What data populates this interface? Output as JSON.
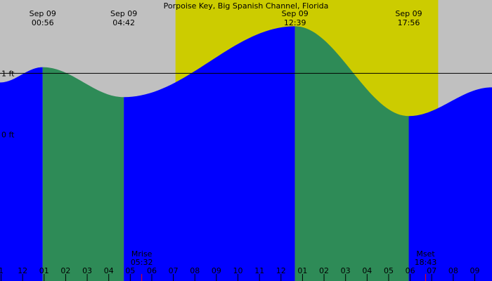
{
  "chart_data": {
    "type": "area",
    "title": "Porpoise Key, Big Spanish Channel, Florida",
    "xlabel": "",
    "ylabel": "",
    "x_unit": "hour",
    "xlim": [
      -1.05,
      21.8
    ],
    "ylim": [
      -2.4,
      2.2
    ],
    "reference_line": 1,
    "y_ticks": [
      {
        "value": 1,
        "label": "1 ft"
      },
      {
        "value": 0,
        "label": "0 ft"
      }
    ],
    "daylight": {
      "start": 7.1,
      "end": 19.3
    },
    "events": [
      {
        "date": "Sep 09",
        "time": "00:56",
        "x": 0.933
      },
      {
        "date": "Sep 09",
        "time": "04:42",
        "x": 4.7
      },
      {
        "date": "Sep 09",
        "time": "12:39",
        "x": 12.65
      },
      {
        "date": "Sep 09",
        "time": "17:56",
        "x": 17.933
      }
    ],
    "tide_x": [
      -1.05,
      0.933,
      4.7,
      12.65,
      17.933,
      21.8
    ],
    "tide_y": [
      0.85,
      1.1,
      0.61,
      1.77,
      0.3,
      0.77
    ],
    "x_ticks": [
      {
        "x": -1,
        "label": "1"
      },
      {
        "x": 0,
        "label": "12"
      },
      {
        "x": 1,
        "label": "01"
      },
      {
        "x": 2,
        "label": "02"
      },
      {
        "x": 3,
        "label": "03"
      },
      {
        "x": 4,
        "label": "04"
      },
      {
        "x": 5,
        "label": "05"
      },
      {
        "x": 6,
        "label": "06"
      },
      {
        "x": 7,
        "label": "07"
      },
      {
        "x": 8,
        "label": "08"
      },
      {
        "x": 9,
        "label": "09"
      },
      {
        "x": 10,
        "label": "10"
      },
      {
        "x": 11,
        "label": "11"
      },
      {
        "x": 12,
        "label": "12"
      },
      {
        "x": 13,
        "label": "01"
      },
      {
        "x": 14,
        "label": "02"
      },
      {
        "x": 15,
        "label": "03"
      },
      {
        "x": 16,
        "label": "04"
      },
      {
        "x": 17,
        "label": "05"
      },
      {
        "x": 18,
        "label": "06"
      },
      {
        "x": 19,
        "label": "07"
      },
      {
        "x": 20,
        "label": "08"
      },
      {
        "x": 21,
        "label": "09"
      }
    ],
    "moon": [
      {
        "label": "Mrise",
        "time": "05:32",
        "x": 5.533
      },
      {
        "label": "Mset",
        "time": "18:43",
        "x": 18.717
      }
    ],
    "colors": {
      "background": "#c0c0c0",
      "daylight": "#cccc00",
      "rising": "#0000ff",
      "falling": "#2e8b57",
      "moon_mark": "#ff0000"
    }
  }
}
